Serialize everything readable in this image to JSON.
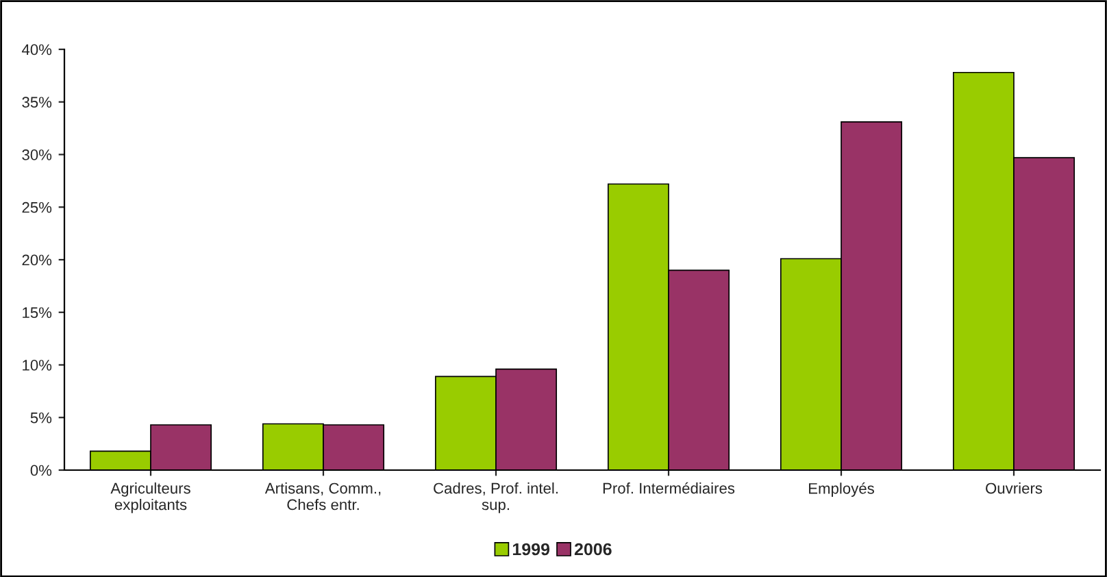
{
  "chart_data": {
    "type": "bar",
    "categories": [
      "Agriculteurs\nexploitants",
      "Artisans, Comm.,\nChefs entr.",
      "Cadres, Prof. intel.\nsup.",
      "Prof. Intermédiaires",
      "Employés",
      "Ouvriers"
    ],
    "series": [
      {
        "name": "1999",
        "color": "#99cc00",
        "values": [
          1.8,
          4.4,
          8.9,
          27.2,
          20.1,
          37.8
        ]
      },
      {
        "name": "2006",
        "color": "#993366",
        "values": [
          4.3,
          4.3,
          9.6,
          19.0,
          33.1,
          29.7
        ]
      }
    ],
    "ylim": [
      0,
      40
    ],
    "yticks": [
      {
        "value": 0,
        "label": "0%"
      },
      {
        "value": 5,
        "label": "5%"
      },
      {
        "value": 10,
        "label": "10%"
      },
      {
        "value": 15,
        "label": "15%"
      },
      {
        "value": 20,
        "label": "20%"
      },
      {
        "value": 25,
        "label": "25%"
      },
      {
        "value": 30,
        "label": "30%"
      },
      {
        "value": 35,
        "label": "35%"
      },
      {
        "value": 40,
        "label": "40%"
      }
    ],
    "grid": false,
    "legend": "bottom"
  }
}
